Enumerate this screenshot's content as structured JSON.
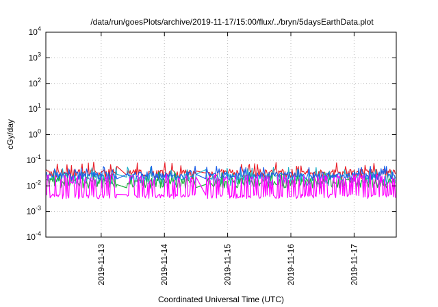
{
  "chart_data": {
    "type": "line",
    "title": "/data/run/goesPlots/archive/2019-11-17/15:00/flux/../bryn/5daysEarthData.plot",
    "xlabel": "Coordinated Universal Time (UTC)",
    "ylabel": "cGy/day",
    "yscale": "log",
    "ylim_exponents": [
      -4,
      4
    ],
    "ytick_base": "10",
    "ytick_exponents": [
      "-4",
      "-3",
      "-2",
      "-1",
      "0",
      "1",
      "2",
      "3",
      "4"
    ],
    "xlim": [
      "2019-11-12T03:00",
      "2019-11-17T16:00"
    ],
    "xticks": [
      "2019-11-13",
      "2019-11-14",
      "2019-11-15",
      "2019-11-16",
      "2019-11-17"
    ],
    "grid": true,
    "gaps": [
      [
        "2019-11-13T06:00",
        "2019-11-13T09:30"
      ],
      [
        "2019-11-14T12:00",
        "2019-11-14T15:30"
      ]
    ],
    "series": [
      {
        "color": "#e8202a",
        "low": 0.018,
        "high": 0.045,
        "spike": 0.07
      },
      {
        "color": "#1fb0c8",
        "low": 0.01,
        "high": 0.03,
        "spike": 0.045
      },
      {
        "color": "#20b040",
        "low": 0.008,
        "high": 0.02,
        "spike": 0.03
      },
      {
        "color": "#1e60e8",
        "low": 0.017,
        "high": 0.035,
        "spike": 0.05
      },
      {
        "color": "#ff00ff",
        "low": 0.0035,
        "high": 0.02,
        "spike": 0.025
      }
    ]
  }
}
